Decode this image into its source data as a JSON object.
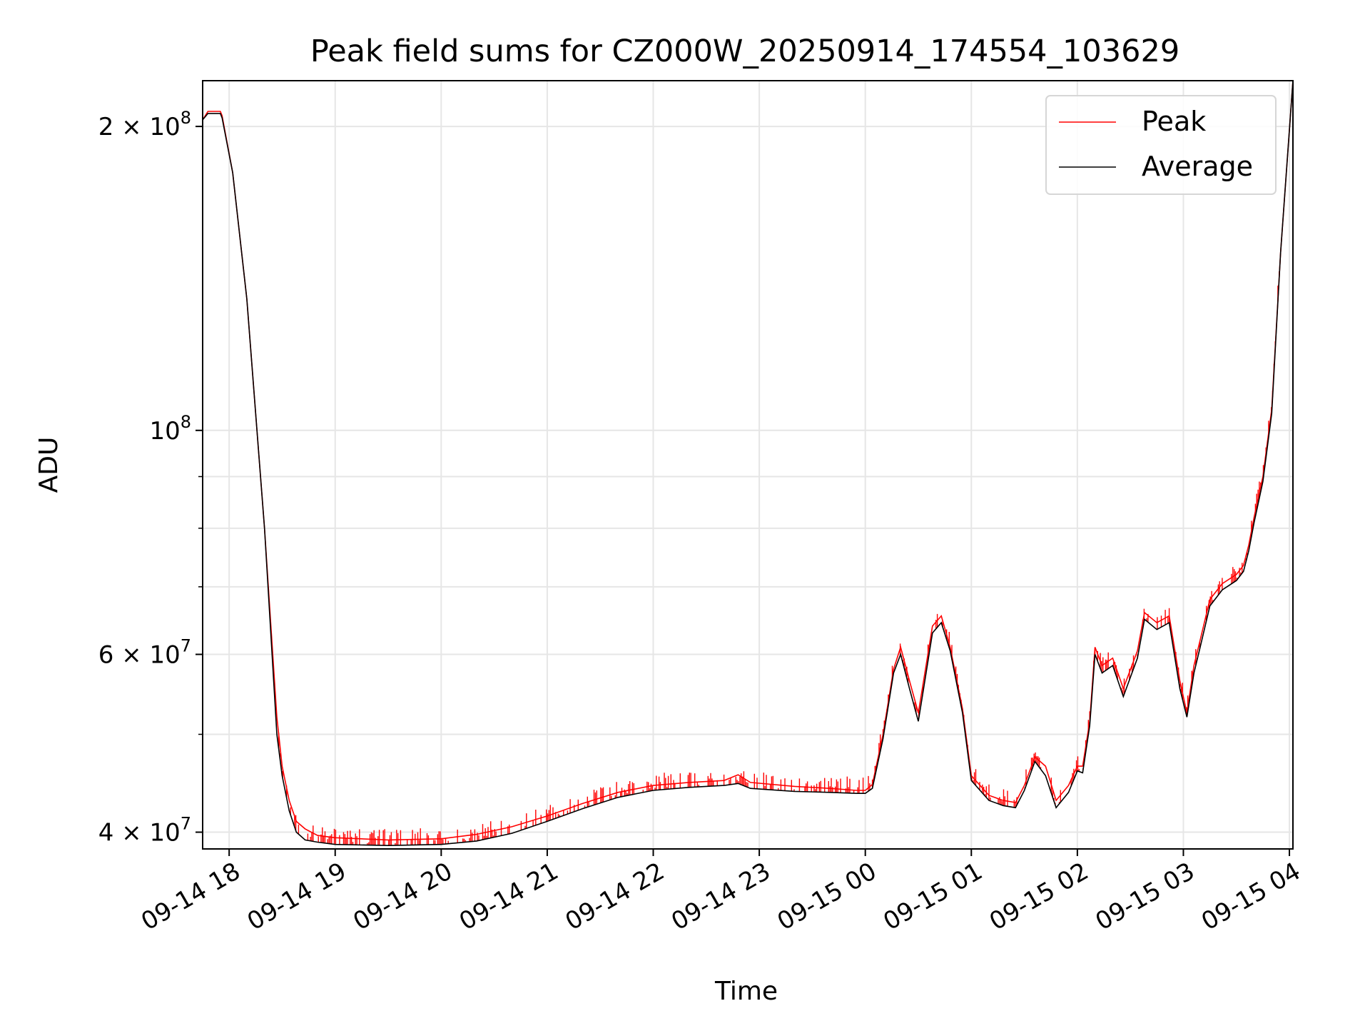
{
  "chart_data": {
    "type": "line",
    "title": "Peak field sums for CZ000W_20250914_174554_103629",
    "xlabel": "Time",
    "ylabel": "ADU",
    "y_scale": "log",
    "ylim": [
      38500000,
      222000000
    ],
    "xlim": [
      "2025-09-14 17:45",
      "2025-09-15 04:02"
    ],
    "grid": true,
    "legend_position": "top-right",
    "x_ticks": [
      {
        "value": "2025-09-14 18:00",
        "label": "09-14 18"
      },
      {
        "value": "2025-09-14 19:00",
        "label": "09-14 19"
      },
      {
        "value": "2025-09-14 20:00",
        "label": "09-14 20"
      },
      {
        "value": "2025-09-14 21:00",
        "label": "09-14 21"
      },
      {
        "value": "2025-09-14 22:00",
        "label": "09-14 22"
      },
      {
        "value": "2025-09-14 23:00",
        "label": "09-14 23"
      },
      {
        "value": "2025-09-15 00:00",
        "label": "09-15 00"
      },
      {
        "value": "2025-09-15 01:00",
        "label": "09-15 01"
      },
      {
        "value": "2025-09-15 02:00",
        "label": "09-15 02"
      },
      {
        "value": "2025-09-15 03:00",
        "label": "09-15 03"
      },
      {
        "value": "2025-09-15 04:00",
        "label": "09-15 04"
      }
    ],
    "y_ticks": [
      {
        "value": 40000000,
        "base": "4 × 10",
        "exp": "7"
      },
      {
        "value": 60000000,
        "base": "6 × 10",
        "exp": "7"
      },
      {
        "value": 100000000,
        "base": "10",
        "exp": "8"
      },
      {
        "value": 200000000,
        "base": "2 × 10",
        "exp": "8"
      }
    ],
    "y_minor_ticks": [
      50000000,
      70000000,
      80000000,
      90000000
    ],
    "series": [
      {
        "name": "Peak",
        "color": "#ff0000",
        "x": [
          "2025-09-14 17:45",
          "2025-09-14 17:48",
          "2025-09-14 17:50",
          "2025-09-14 17:55",
          "2025-09-14 17:56",
          "2025-09-14 18:02",
          "2025-09-14 18:10",
          "2025-09-14 18:20",
          "2025-09-14 18:27",
          "2025-09-14 18:30",
          "2025-09-14 18:34",
          "2025-09-14 18:38",
          "2025-09-14 18:43",
          "2025-09-14 18:50",
          "2025-09-14 19:00",
          "2025-09-14 19:30",
          "2025-09-14 20:00",
          "2025-09-14 20:20",
          "2025-09-14 20:40",
          "2025-09-14 21:00",
          "2025-09-14 21:20",
          "2025-09-14 21:40",
          "2025-09-14 22:00",
          "2025-09-14 22:20",
          "2025-09-14 22:40",
          "2025-09-14 22:48",
          "2025-09-14 22:55",
          "2025-09-14 23:20",
          "2025-09-14 23:40",
          "2025-09-14 23:55",
          "2025-09-15 00:00",
          "2025-09-15 00:04",
          "2025-09-15 00:10",
          "2025-09-15 00:16",
          "2025-09-15 00:20",
          "2025-09-15 00:25",
          "2025-09-15 00:30",
          "2025-09-15 00:33",
          "2025-09-15 00:38",
          "2025-09-15 00:43",
          "2025-09-15 00:48",
          "2025-09-15 00:55",
          "2025-09-15 01:00",
          "2025-09-15 01:10",
          "2025-09-15 01:18",
          "2025-09-15 01:25",
          "2025-09-15 01:30",
          "2025-09-15 01:36",
          "2025-09-15 01:42",
          "2025-09-15 01:48",
          "2025-09-15 01:55",
          "2025-09-15 02:00",
          "2025-09-15 02:03",
          "2025-09-15 02:07",
          "2025-09-15 02:10",
          "2025-09-15 02:14",
          "2025-09-15 02:20",
          "2025-09-15 02:26",
          "2025-09-15 02:34",
          "2025-09-15 02:38",
          "2025-09-15 02:45",
          "2025-09-15 02:52",
          "2025-09-15 02:58",
          "2025-09-15 03:02",
          "2025-09-15 03:06",
          "2025-09-15 03:10",
          "2025-09-15 03:15",
          "2025-09-15 03:22",
          "2025-09-15 03:30",
          "2025-09-15 03:34",
          "2025-09-15 03:37",
          "2025-09-15 03:40",
          "2025-09-15 03:45",
          "2025-09-15 03:50",
          "2025-09-15 03:55",
          "2025-09-15 04:02"
        ],
        "values": [
          203000000,
          207000000,
          207000000,
          207000000,
          205000000,
          180000000,
          135000000,
          80000000,
          52000000,
          46500000,
          43000000,
          41000000,
          40300000,
          39700000,
          39500000,
          39300000,
          39400000,
          39800000,
          40500000,
          41500000,
          42700000,
          43800000,
          44500000,
          44800000,
          45000000,
          45600000,
          44800000,
          44400000,
          44200000,
          44000000,
          44000000,
          44600000,
          50000000,
          58000000,
          61000000,
          56500000,
          52500000,
          56500000,
          64000000,
          65500000,
          61000000,
          53000000,
          45500000,
          43500000,
          43000000,
          42800000,
          44500000,
          47500000,
          46500000,
          43000000,
          44500000,
          46500000,
          46500000,
          51500000,
          61000000,
          58500000,
          59500000,
          55500000,
          60500000,
          66000000,
          64500000,
          65500000,
          56500000,
          52500000,
          58500000,
          62500000,
          68000000,
          70500000,
          72000000,
          73500000,
          77000000,
          82000000,
          90000000,
          105000000,
          150000000,
          222000000
        ]
      },
      {
        "name": "Average",
        "color": "#000000",
        "x": [
          "2025-09-14 17:45",
          "2025-09-14 17:48",
          "2025-09-14 17:50",
          "2025-09-14 17:55",
          "2025-09-14 17:56",
          "2025-09-14 18:02",
          "2025-09-14 18:10",
          "2025-09-14 18:20",
          "2025-09-14 18:27",
          "2025-09-14 18:30",
          "2025-09-14 18:34",
          "2025-09-14 18:38",
          "2025-09-14 18:43",
          "2025-09-14 18:50",
          "2025-09-14 19:00",
          "2025-09-14 19:30",
          "2025-09-14 20:00",
          "2025-09-14 20:20",
          "2025-09-14 20:40",
          "2025-09-14 21:00",
          "2025-09-14 21:20",
          "2025-09-14 21:40",
          "2025-09-14 22:00",
          "2025-09-14 22:20",
          "2025-09-14 22:40",
          "2025-09-14 22:48",
          "2025-09-14 22:55",
          "2025-09-14 23:20",
          "2025-09-14 23:40",
          "2025-09-14 23:55",
          "2025-09-15 00:00",
          "2025-09-15 00:04",
          "2025-09-15 00:10",
          "2025-09-15 00:16",
          "2025-09-15 00:20",
          "2025-09-15 00:25",
          "2025-09-15 00:30",
          "2025-09-15 00:33",
          "2025-09-15 00:38",
          "2025-09-15 00:43",
          "2025-09-15 00:48",
          "2025-09-15 00:55",
          "2025-09-15 01:00",
          "2025-09-15 01:10",
          "2025-09-15 01:18",
          "2025-09-15 01:25",
          "2025-09-15 01:30",
          "2025-09-15 01:36",
          "2025-09-15 01:42",
          "2025-09-15 01:48",
          "2025-09-15 01:55",
          "2025-09-15 02:00",
          "2025-09-15 02:03",
          "2025-09-15 02:07",
          "2025-09-15 02:10",
          "2025-09-15 02:14",
          "2025-09-15 02:20",
          "2025-09-15 02:26",
          "2025-09-15 02:34",
          "2025-09-15 02:38",
          "2025-09-15 02:45",
          "2025-09-15 02:52",
          "2025-09-15 02:58",
          "2025-09-15 03:02",
          "2025-09-15 03:06",
          "2025-09-15 03:10",
          "2025-09-15 03:15",
          "2025-09-15 03:22",
          "2025-09-15 03:30",
          "2025-09-15 03:34",
          "2025-09-15 03:37",
          "2025-09-15 03:40",
          "2025-09-15 03:45",
          "2025-09-15 03:50",
          "2025-09-15 03:55",
          "2025-09-15 04:02"
        ],
        "values": [
          203000000,
          206000000,
          206000000,
          206000000,
          204000000,
          180000000,
          135000000,
          80000000,
          50000000,
          45500000,
          42000000,
          40000000,
          39300000,
          39100000,
          38900000,
          38800000,
          38900000,
          39200000,
          39900000,
          41000000,
          42200000,
          43300000,
          44000000,
          44300000,
          44500000,
          44700000,
          44200000,
          43900000,
          43800000,
          43700000,
          43700000,
          44200000,
          49500000,
          57500000,
          60000000,
          55500000,
          51500000,
          55500000,
          63000000,
          64500000,
          60500000,
          52500000,
          45000000,
          43000000,
          42500000,
          42300000,
          44000000,
          47000000,
          45500000,
          42300000,
          43800000,
          46000000,
          45800000,
          51000000,
          60000000,
          57500000,
          58500000,
          54500000,
          59500000,
          65000000,
          63500000,
          64500000,
          55500000,
          52000000,
          57500000,
          61500000,
          67000000,
          69500000,
          71000000,
          72500000,
          76000000,
          81000000,
          89000000,
          104000000,
          150000000,
          222000000
        ]
      }
    ]
  }
}
